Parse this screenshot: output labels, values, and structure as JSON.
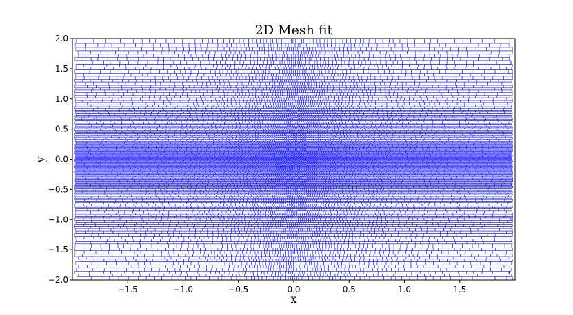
{
  "chart_data": {
    "type": "mesh",
    "title": "2D Mesh fit",
    "xlabel": "x",
    "ylabel": "y",
    "xlim": [
      -2.0,
      2.0
    ],
    "ylim": [
      -2.0,
      2.0
    ],
    "xticks": [
      -1.5,
      -1.0,
      -0.5,
      0.0,
      0.5,
      1.0,
      1.5
    ],
    "xtick_labels": [
      "−1.5",
      "−1.0",
      "−0.5",
      "0.0",
      "0.5",
      "1.0",
      "1.5"
    ],
    "yticks": [
      2.0,
      1.5,
      1.0,
      0.5,
      0.0,
      -0.5,
      -1.0,
      -1.5,
      -2.0
    ],
    "ytick_labels": [
      "2.0",
      "1.5",
      "1.0",
      "0.5",
      "0.0",
      "−0.5",
      "−1.0",
      "−1.5",
      "−2.0"
    ],
    "mesh_color": "#0000ff",
    "grid": false,
    "legend": "none",
    "mesh_density": {
      "description": "cells densest near y=0 and x=0, coarser toward edges",
      "y_center": 0.0,
      "x_center": 0.0
    }
  },
  "colors": {
    "mesh": "#0000ff",
    "axes": "#000000",
    "background": "#ffffff"
  }
}
